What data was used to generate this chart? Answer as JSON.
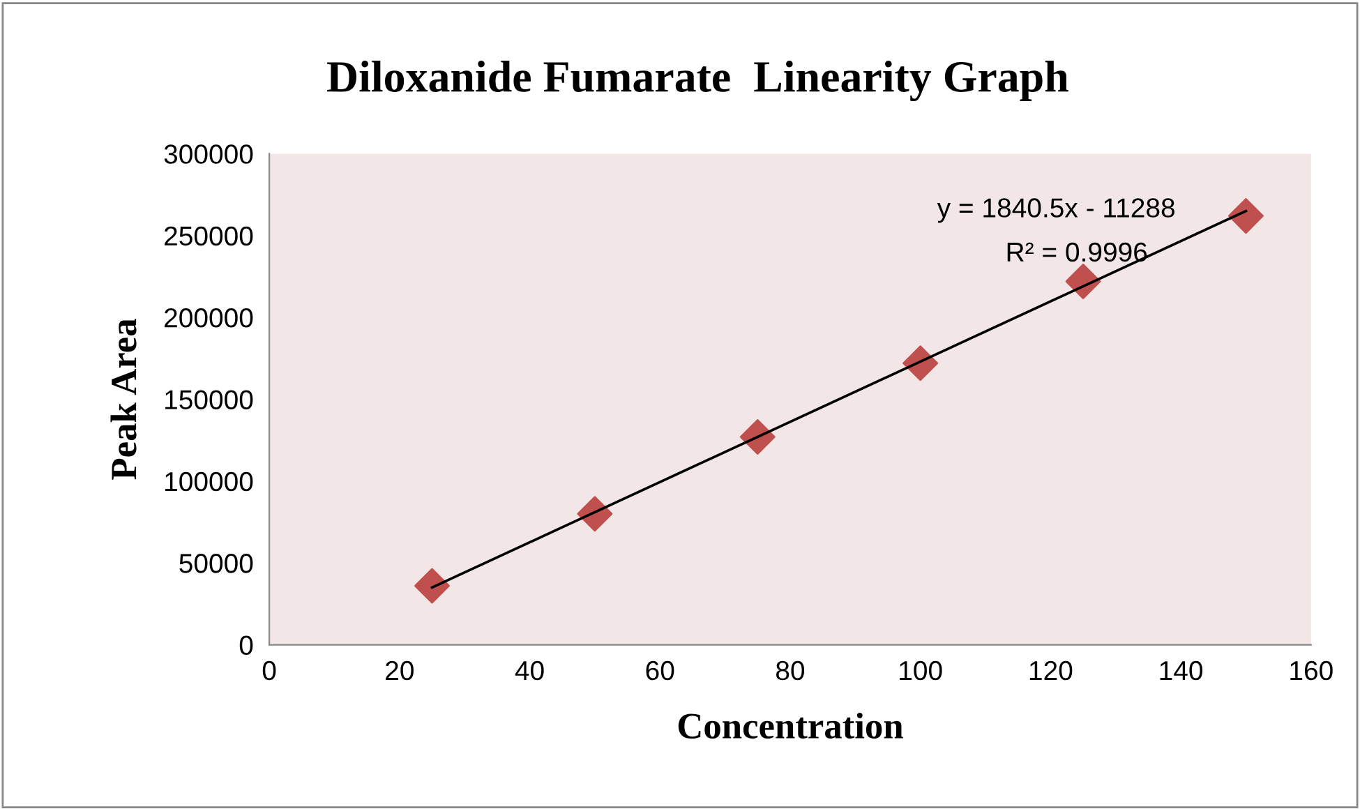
{
  "chart_data": {
    "type": "scatter",
    "title": "Diloxanide Fumarate  Linearity Graph",
    "xlabel": "Concentration",
    "ylabel": "Peak Area",
    "series": [
      {
        "color": "#c0504d",
        "marker": "diamond",
        "x": [
          25,
          50,
          75,
          100,
          125,
          150
        ],
        "values": [
          36000,
          80000,
          127000,
          172000,
          222000,
          262000
        ]
      },
      {
        "type": "line",
        "color": "#000000",
        "marker": "none",
        "line_style": "solid",
        "x": [
          25,
          150
        ],
        "values": [
          35000,
          265000
        ]
      }
    ],
    "annotations": [
      "y = 1840.5x - 11288",
      "R² = 0.9996"
    ],
    "xlim": [
      0,
      160
    ],
    "xticks": [
      0,
      20,
      40,
      60,
      80,
      100,
      120,
      140,
      160
    ],
    "ylim": [
      0,
      300000
    ],
    "yticks": [
      0,
      50000,
      100000,
      150000,
      200000,
      250000,
      300000
    ],
    "grid": false,
    "legend": false
  }
}
